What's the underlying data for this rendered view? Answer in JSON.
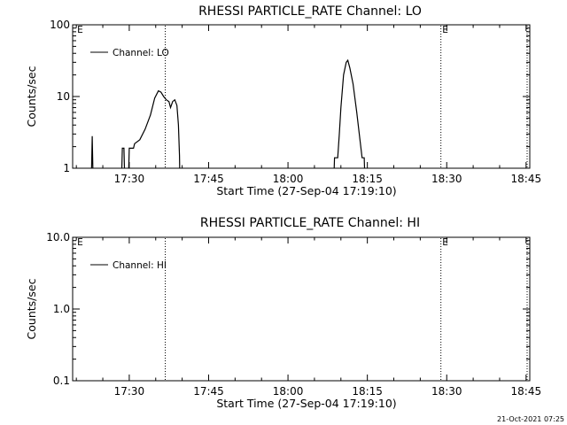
{
  "footer": {
    "timestamp": "21-Oct-2021 07:25"
  },
  "chart_data": [
    {
      "type": "line",
      "title": "RHESSI PARTICLE_RATE Channel: LO",
      "xlabel": "Start Time (27-Sep-04 17:19:10)",
      "ylabel": "Counts/sec",
      "yscale": "log",
      "ylim": [
        1,
        100
      ],
      "xlim_minutes": [
        17.3,
        103.7
      ],
      "xticks": [
        {
          "t": 28,
          "label": "17:30"
        },
        {
          "t": 43,
          "label": "17:45"
        },
        {
          "t": 58,
          "label": "18:00"
        },
        {
          "t": 73,
          "label": "18:15"
        },
        {
          "t": 88,
          "label": "18:30"
        },
        {
          "t": 103,
          "label": "18:45"
        }
      ],
      "yticks": [
        {
          "v": 1,
          "label": "1"
        },
        {
          "v": 10,
          "label": "10"
        },
        {
          "v": 100,
          "label": "100"
        }
      ],
      "vlines_minutes": [
        34.8,
        86.9,
        104.8
      ],
      "markers": [
        {
          "t": 18.0,
          "label": "E"
        },
        {
          "t": 87.0,
          "label": "E"
        }
      ],
      "legend": {
        "label": "Channel: LO",
        "position": "top-left"
      },
      "series": [
        {
          "segments": [
            [
              [
                20.8,
                0.5
              ],
              [
                21.0,
                2.8
              ],
              [
                21.2,
                0.5
              ]
            ],
            [
              [
                26.5,
                0.5
              ],
              [
                26.7,
                1.9
              ],
              [
                27.0,
                1.9
              ],
              [
                27.2,
                0.5
              ]
            ],
            [
              [
                27.8,
                0.5
              ],
              [
                28.0,
                1.9
              ],
              [
                28.8,
                1.9
              ],
              [
                29.0,
                2.2
              ],
              [
                30.0,
                2.5
              ],
              [
                31.0,
                3.5
              ],
              [
                32.0,
                5.5
              ],
              [
                32.8,
                9.5
              ],
              [
                33.5,
                12.0
              ],
              [
                34.0,
                11.5
              ],
              [
                34.5,
                10.0
              ],
              [
                35.0,
                9.0
              ],
              [
                35.5,
                8.5
              ],
              [
                35.8,
                7.0
              ],
              [
                36.2,
                8.5
              ],
              [
                36.6,
                9.0
              ],
              [
                37.0,
                7.5
              ],
              [
                37.3,
                4.0
              ],
              [
                37.5,
                1.5
              ],
              [
                37.6,
                0.5
              ]
            ],
            [
              [
                66.6,
                0.5
              ],
              [
                66.8,
                1.4
              ],
              [
                67.4,
                1.4
              ],
              [
                67.7,
                3.0
              ],
              [
                68.0,
                7.0
              ],
              [
                68.5,
                20.0
              ],
              [
                69.0,
                30.0
              ],
              [
                69.3,
                32.0
              ],
              [
                69.7,
                25.0
              ],
              [
                70.3,
                15.0
              ],
              [
                71.0,
                6.0
              ],
              [
                71.6,
                2.5
              ],
              [
                72.0,
                1.4
              ],
              [
                72.4,
                1.4
              ],
              [
                72.6,
                0.5
              ]
            ]
          ]
        }
      ]
    },
    {
      "type": "line",
      "title": "RHESSI PARTICLE_RATE Channel: HI",
      "xlabel": "Start Time (27-Sep-04 17:19:10)",
      "ylabel": "Counts/sec",
      "yscale": "log",
      "ylim": [
        0.1,
        10
      ],
      "xlim_minutes": [
        17.3,
        103.7
      ],
      "xticks": [
        {
          "t": 28,
          "label": "17:30"
        },
        {
          "t": 43,
          "label": "17:45"
        },
        {
          "t": 58,
          "label": "18:00"
        },
        {
          "t": 73,
          "label": "18:15"
        },
        {
          "t": 88,
          "label": "18:30"
        },
        {
          "t": 103,
          "label": "18:45"
        }
      ],
      "yticks": [
        {
          "v": 0.1,
          "label": "0.1"
        },
        {
          "v": 1,
          "label": "1.0"
        },
        {
          "v": 10,
          "label": "10.0"
        }
      ],
      "vlines_minutes": [
        34.8,
        86.9,
        104.8
      ],
      "markers": [
        {
          "t": 18.0,
          "label": "E"
        },
        {
          "t": 87.0,
          "label": "E"
        }
      ],
      "legend": {
        "label": "Channel: HI",
        "position": "top-left"
      },
      "series": [
        {
          "segments": []
        }
      ]
    }
  ]
}
